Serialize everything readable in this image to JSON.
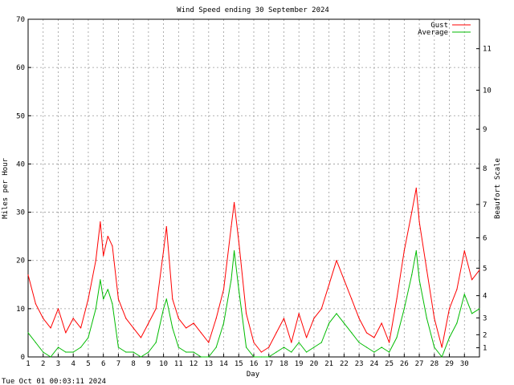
{
  "timestamp": "Tue Oct 01 00:03:11 2024",
  "chart_data": {
    "type": "line",
    "title": "Wind Speed ending 30 September 2024",
    "xlabel": "Day",
    "ylabel": "Miles per Hour",
    "y2label": "Beaufort Scale",
    "xlim": [
      1,
      31
    ],
    "ylim": [
      0,
      70
    ],
    "x_ticks": [
      1,
      2,
      3,
      4,
      5,
      6,
      7,
      8,
      9,
      10,
      11,
      12,
      13,
      14,
      15,
      16,
      17,
      18,
      19,
      20,
      21,
      22,
      23,
      24,
      25,
      26,
      27,
      28,
      29,
      30
    ],
    "y_ticks": [
      0,
      10,
      20,
      30,
      40,
      50,
      60,
      70
    ],
    "y2_ticks": [
      {
        "label": "1",
        "mph": 1.9
      },
      {
        "label": "2",
        "mph": 4.6
      },
      {
        "label": "3",
        "mph": 8.1
      },
      {
        "label": "4",
        "mph": 12.7
      },
      {
        "label": "5",
        "mph": 18.4
      },
      {
        "label": "6",
        "mph": 24.7
      },
      {
        "label": "7",
        "mph": 31.6
      },
      {
        "label": "8",
        "mph": 39.1
      },
      {
        "label": "9",
        "mph": 47.2
      },
      {
        "label": "10",
        "mph": 55.3
      },
      {
        "label": "11",
        "mph": 63.9
      }
    ],
    "grid": true,
    "legend_position": "top-right",
    "series": [
      {
        "name": "Gust",
        "color": "#ff0000",
        "x": [
          1,
          1.5,
          2,
          2.5,
          3,
          3.5,
          4,
          4.5,
          5,
          5.5,
          5.8,
          6,
          6.3,
          6.6,
          7,
          7.5,
          8,
          8.5,
          9,
          9.5,
          10,
          10.2,
          10.6,
          11,
          11.5,
          12,
          12.5,
          13,
          13.5,
          14,
          14.5,
          14.7,
          15,
          15.5,
          16,
          16.5,
          17,
          17.5,
          18,
          18.5,
          19,
          19.5,
          20,
          20.5,
          21,
          21.5,
          22,
          22.5,
          23,
          23.5,
          24,
          24.5,
          25,
          25.5,
          26,
          26.5,
          26.8,
          27,
          27.5,
          28,
          28.5,
          29,
          29.5,
          30,
          30.5,
          31
        ],
        "values": [
          17,
          11,
          8,
          6,
          10,
          5,
          8,
          6,
          12,
          20,
          28,
          21,
          25,
          23,
          12,
          8,
          6,
          4,
          7,
          10,
          22,
          27,
          12,
          8,
          6,
          7,
          5,
          3,
          8,
          14,
          27,
          32,
          24,
          9,
          3,
          1,
          2,
          5,
          8,
          3,
          9,
          4,
          8,
          10,
          15,
          20,
          16,
          12,
          8,
          5,
          4,
          7,
          3,
          12,
          22,
          30,
          35,
          28,
          18,
          8,
          2,
          10,
          14,
          22,
          16,
          18
        ]
      },
      {
        "name": "Average",
        "color": "#00bb00",
        "x": [
          1,
          1.5,
          2,
          2.5,
          3,
          3.5,
          4,
          4.5,
          5,
          5.5,
          5.8,
          6,
          6.3,
          6.6,
          7,
          7.5,
          8,
          8.5,
          9,
          9.5,
          10,
          10.2,
          10.6,
          11,
          11.5,
          12,
          12.5,
          13,
          13.5,
          14,
          14.5,
          14.7,
          15,
          15.5,
          16,
          16.5,
          17,
          17.5,
          18,
          18.5,
          19,
          19.5,
          20,
          20.5,
          21,
          21.5,
          22,
          22.5,
          23,
          23.5,
          24,
          24.5,
          25,
          25.5,
          26,
          26.5,
          26.8,
          27,
          27.5,
          28,
          28.5,
          29,
          29.5,
          30,
          30.5,
          31
        ],
        "values": [
          5,
          3,
          1,
          0,
          2,
          1,
          1,
          2,
          4,
          10,
          16,
          12,
          14,
          11,
          2,
          1,
          1,
          0,
          1,
          3,
          10,
          12,
          6,
          2,
          1,
          1,
          0,
          0,
          2,
          7,
          16,
          22,
          14,
          2,
          0,
          0,
          0,
          1,
          2,
          1,
          3,
          1,
          2,
          3,
          7,
          9,
          7,
          5,
          3,
          2,
          1,
          2,
          1,
          4,
          10,
          17,
          22,
          16,
          8,
          2,
          0,
          4,
          7,
          13,
          9,
          10
        ]
      }
    ]
  }
}
